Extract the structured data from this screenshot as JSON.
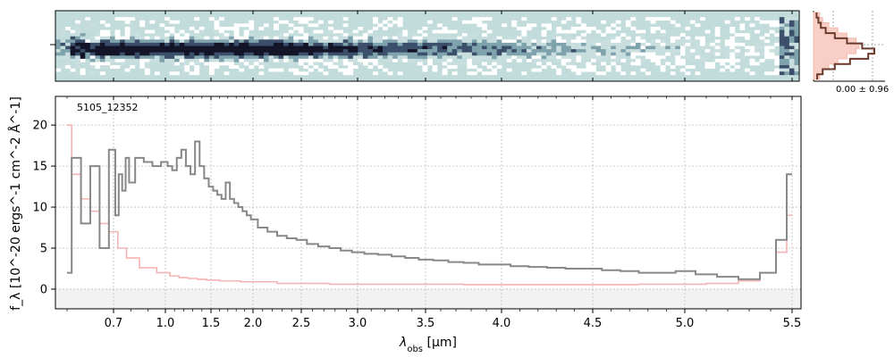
{
  "chart_data": [
    {
      "type": "heatmap",
      "panel": "2d-spectrum",
      "colormap": [
        "#ffffff",
        "#c9dede",
        "#7fa3ad",
        "#3b4f6b",
        "#141428"
      ],
      "background": "#c2dcdb",
      "rows": 22,
      "trace_rows": [
        10,
        11,
        12,
        13
      ]
    },
    {
      "type": "area",
      "panel": "spatial-profile",
      "profile": [
        0.05,
        0.08,
        0.12,
        0.2,
        0.35,
        0.55,
        0.8,
        1.0,
        0.9,
        0.6,
        0.35,
        0.15,
        0.06
      ],
      "model_profile": [
        0.1,
        0.15,
        0.25,
        0.4,
        0.55,
        0.7,
        0.75,
        0.7,
        0.55,
        0.4,
        0.25,
        0.15,
        0.1
      ],
      "annotation": "0.00 ± 0.96",
      "colors": {
        "data": "#6b3a2a",
        "model": "#f4b8aa"
      }
    },
    {
      "type": "line",
      "panel": "1d-spectrum",
      "object_label": "5105_12352",
      "xlabel": "λ",
      "xlabel_sub": "obs",
      "xlabel_unit": " [μm]",
      "ylabel_html": "f_λ [10^-20 ergs^-1 cm^-2 Å^-1]",
      "ylabel_text": {
        "f": "f",
        "lambda": "λ",
        "open": " [10",
        "e1": "−20",
        "ergs": " ergs",
        "e2": "−1",
        "cm": "cm",
        "e3": "−2",
        "ang": "Å",
        "e4": "−1",
        "close": "]"
      },
      "ylim": [
        -2.4,
        23.5
      ],
      "yticks": [
        0,
        5,
        10,
        15,
        20
      ],
      "xticks": [
        0.7,
        1.0,
        1.5,
        2.0,
        2.5,
        3.0,
        3.5,
        4.0,
        4.5,
        5.0,
        5.5
      ],
      "xtick_labels": [
        "0.7",
        "1.0",
        "1.5",
        "2.0",
        "2.5",
        "3.0",
        "3.5",
        "4.0",
        "4.5",
        "5.0",
        "5.5"
      ],
      "x_scale": "nonlinear (prism dispersion)",
      "grid": true,
      "series": [
        {
          "name": "",
          "color": "#888888",
          "x": [
            0.6,
            0.62,
            0.64,
            0.66,
            0.68,
            0.7,
            0.72,
            0.74,
            0.76,
            0.78,
            0.8,
            0.85,
            0.9,
            0.95,
            1.0,
            1.05,
            1.1,
            1.15,
            1.2,
            1.25,
            1.3,
            1.35,
            1.4,
            1.45,
            1.5,
            1.55,
            1.6,
            1.65,
            1.7,
            1.75,
            1.8,
            1.85,
            1.9,
            1.95,
            2.0,
            2.1,
            2.2,
            2.3,
            2.4,
            2.5,
            2.6,
            2.7,
            2.8,
            2.9,
            3.0,
            3.1,
            3.2,
            3.3,
            3.4,
            3.5,
            3.6,
            3.7,
            3.8,
            3.9,
            4.0,
            4.1,
            4.2,
            4.3,
            4.4,
            4.5,
            4.6,
            4.7,
            4.8,
            4.9,
            5.0,
            5.1,
            5.2,
            5.3,
            5.4,
            5.45,
            5.5
          ],
          "values": [
            2.0,
            16.0,
            8.0,
            15.0,
            5.0,
            17.0,
            9.0,
            14.0,
            12.0,
            16.0,
            13.0,
            16.0,
            15.5,
            15.0,
            15.5,
            15.0,
            14.5,
            16.0,
            17.0,
            15.0,
            14.0,
            18.0,
            15.0,
            13.5,
            12.5,
            12.0,
            11.5,
            11.0,
            13.0,
            11.0,
            10.5,
            10.0,
            9.5,
            9.0,
            8.5,
            7.5,
            7.0,
            6.5,
            6.2,
            6.0,
            5.5,
            5.2,
            5.0,
            4.7,
            4.5,
            4.3,
            4.2,
            4.0,
            3.8,
            3.6,
            3.5,
            3.3,
            3.2,
            3.0,
            3.0,
            2.8,
            2.7,
            2.6,
            2.5,
            2.5,
            2.3,
            2.2,
            2.0,
            2.0,
            2.2,
            1.8,
            1.5,
            1.2,
            2.0,
            6.0,
            14.0
          ]
        },
        {
          "name": "",
          "color": "#f5b4b4",
          "x": [
            0.6,
            0.62,
            0.64,
            0.66,
            0.68,
            0.7,
            0.75,
            0.8,
            0.9,
            1.0,
            1.1,
            1.2,
            1.3,
            1.4,
            1.5,
            1.7,
            2.0,
            2.5,
            3.0,
            3.5,
            4.0,
            4.5,
            5.0,
            5.2,
            5.3,
            5.4,
            5.45,
            5.5
          ],
          "values": [
            20.0,
            14.0,
            11.0,
            9.5,
            8.0,
            7.0,
            5.0,
            3.8,
            2.6,
            2.0,
            1.6,
            1.4,
            1.3,
            1.2,
            1.1,
            1.0,
            0.9,
            0.7,
            0.6,
            0.6,
            0.55,
            0.55,
            0.6,
            0.7,
            1.0,
            2.0,
            4.5,
            9.0
          ]
        }
      ]
    }
  ]
}
